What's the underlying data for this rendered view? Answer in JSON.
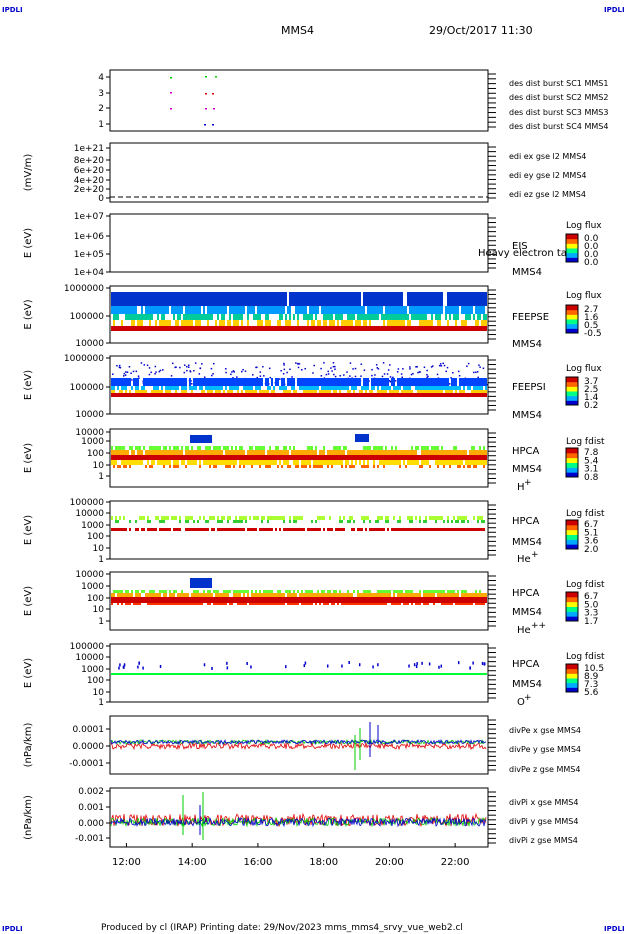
{
  "header": {
    "title": "MMS4",
    "datetime": "29/Oct/2017 11:30",
    "corner_label": "IPDLI"
  },
  "footer": {
    "text": "Produced by cl (IRAP)   Printing date: 29/Nov/2023   mms_mms4_srvy_vue_web2.cl"
  },
  "colors": {
    "red": "#e00000",
    "green": "#00cc00",
    "blue": "#0000cc",
    "magenta": "#cc00cc"
  },
  "chart_data": [
    {
      "type": "scatter",
      "id": "burst",
      "yticks": [
        "4",
        "3",
        "2",
        "1"
      ],
      "legend": [
        {
          "label": "des dist burst SC1 MMS1",
          "color": "#0000cc"
        },
        {
          "label": "des dist burst SC2 MMS2",
          "color": "#cc00cc"
        },
        {
          "label": "des dist burst SC3 MMS3",
          "color": "#e00000"
        },
        {
          "label": "des dist burst SC4 MMS4",
          "color": "#00cc00"
        }
      ]
    },
    {
      "type": "line",
      "id": "edi",
      "ylabel": "(mV/m)",
      "yticks": [
        "1e+21",
        "8e+20",
        "6e+20",
        "4e+20",
        "2e+20",
        "0"
      ],
      "legend": [
        {
          "label": "edi ex gse l2 MMS4",
          "color": "#e00000"
        },
        {
          "label": "edi ey gse l2 MMS4",
          "color": "#00cc00"
        },
        {
          "label": "edi ez gse l2 MMS4",
          "color": "#0000cc"
        }
      ]
    },
    {
      "type": "heatmap",
      "id": "eis",
      "ylabel": "E (eV)",
      "yticks": [
        "1e+07",
        "1e+06",
        "1e+05",
        "1e+04"
      ],
      "instrument": "EIS",
      "overlap_text": "Heavy electron ta",
      "sc": "MMS4",
      "cbar_title": "Log flux",
      "cbar_ticks": [
        "0.0",
        "0.0",
        "0.0",
        "0.0"
      ]
    },
    {
      "type": "heatmap",
      "id": "feepse",
      "ylabel": "E (eV)",
      "yticks": [
        "1000000",
        "100000",
        "10000"
      ],
      "instrument": "FEEPSE",
      "sc": "MMS4",
      "cbar_title": "Log flux",
      "cbar_ticks": [
        "2.7",
        "1.6",
        "0.5",
        "-0.5"
      ]
    },
    {
      "type": "heatmap",
      "id": "feepsi",
      "ylabel": "E (eV)",
      "yticks": [
        "1000000",
        "100000",
        "10000"
      ],
      "instrument": "FEEPSI",
      "sc": "MMS4",
      "cbar_title": "Log flux",
      "cbar_ticks": [
        "3.7",
        "2.5",
        "1.4",
        "0.2"
      ]
    },
    {
      "type": "heatmap",
      "id": "hpca_h",
      "ylabel": "E (eV)",
      "yticks": [
        "10000",
        "1000",
        "100",
        "10",
        "1"
      ],
      "instrument": "HPCA",
      "sc": "MMS4",
      "species": "H",
      "species_sup": "+",
      "cbar_title": "Log fdist",
      "cbar_ticks": [
        "7.8",
        "5.4",
        "3.1",
        "0.8"
      ]
    },
    {
      "type": "heatmap",
      "id": "hpca_he",
      "ylabel": "E (eV)",
      "yticks": [
        "100000",
        "10000",
        "1000",
        "100",
        "10",
        "1"
      ],
      "instrument": "HPCA",
      "sc": "MMS4",
      "species": "He",
      "species_sup": "+",
      "cbar_title": "Log fdist",
      "cbar_ticks": [
        "6.7",
        "5.1",
        "3.6",
        "2.0"
      ]
    },
    {
      "type": "heatmap",
      "id": "hpca_hepp",
      "ylabel": "E (eV)",
      "yticks": [
        "10000",
        "1000",
        "100",
        "10",
        "1"
      ],
      "instrument": "HPCA",
      "sc": "MMS4",
      "species": "He",
      "species_sup": "++",
      "cbar_title": "Log fdist",
      "cbar_ticks": [
        "6.7",
        "5.0",
        "3.3",
        "1.7"
      ]
    },
    {
      "type": "heatmap",
      "id": "hpca_o",
      "ylabel": "E (eV)",
      "yticks": [
        "100000",
        "10000",
        "1000",
        "100",
        "10",
        "1"
      ],
      "instrument": "HPCA",
      "sc": "MMS4",
      "species": "O",
      "species_sup": "+",
      "cbar_title": "Log fdist",
      "cbar_ticks": [
        "10.5",
        "8.9",
        "7.3",
        "5.6"
      ]
    },
    {
      "type": "line",
      "id": "divpe",
      "ylabel": "(nPa/km)",
      "yticks": [
        "0.0001",
        "0.0000",
        "-0.0001"
      ],
      "legend": [
        {
          "label": "divPe x gse MMS4",
          "color": "#e00000"
        },
        {
          "label": "divPe y gse MMS4",
          "color": "#00cc00"
        },
        {
          "label": "divPe z gse MMS4",
          "color": "#0000cc"
        }
      ]
    },
    {
      "type": "line",
      "id": "divpi",
      "ylabel": "(nPa/km)",
      "yticks": [
        "0.002",
        "0.001",
        "0.000",
        "-0.001"
      ],
      "legend": [
        {
          "label": "divPi x gse MMS4",
          "color": "#e00000"
        },
        {
          "label": "divPi y gse MMS4",
          "color": "#00cc00"
        },
        {
          "label": "divPi z gse MMS4",
          "color": "#0000cc"
        }
      ],
      "xticks": [
        "12:00",
        "14:00",
        "16:00",
        "18:00",
        "20:00",
        "22:00"
      ],
      "xrange_hours": [
        11.5,
        23.0
      ]
    }
  ]
}
